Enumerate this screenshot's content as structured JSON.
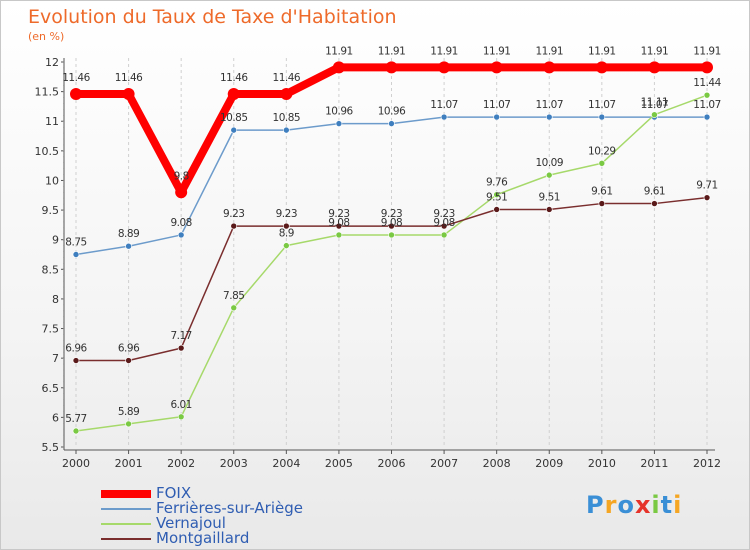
{
  "title": "Evolution du Taux de Taxe d'Habitation",
  "unit_label": "(en %)",
  "logo_text": "Proxiti",
  "chart_data": {
    "type": "line",
    "x": [
      "2000",
      "2001",
      "2002",
      "2003",
      "2004",
      "2005",
      "2006",
      "2007",
      "2008",
      "2009",
      "2010",
      "2011",
      "2012"
    ],
    "ylim": [
      5.5,
      12
    ],
    "yticks": [
      "5.5",
      "6",
      "6.5",
      "7",
      "7.5",
      "8",
      "8.5",
      "9",
      "9.5",
      "10",
      "10.5",
      "11",
      "11.5",
      "12"
    ],
    "grid": "vertical dashed",
    "legend_position": "bottom-left",
    "series": [
      {
        "name": "FOIX",
        "color": "#ff0000",
        "width": 8,
        "values": [
          11.46,
          11.46,
          9.8,
          11.46,
          11.46,
          11.91,
          11.91,
          11.91,
          11.91,
          11.91,
          11.91,
          11.91,
          11.91
        ],
        "labels": [
          "11.46",
          "11.46",
          "9.8",
          "11.46",
          "11.46",
          "11.91",
          "11.91",
          "11.91",
          "11.91",
          "11.91",
          "11.91",
          "11.91",
          "11.91"
        ]
      },
      {
        "name": "Ferrières-sur-Ariège",
        "color": "#6c9bcb",
        "width": 1.5,
        "values": [
          8.75,
          8.89,
          9.08,
          10.85,
          10.85,
          10.96,
          10.96,
          11.07,
          11.07,
          11.07,
          11.07,
          11.07,
          11.07
        ],
        "labels": [
          "8.75",
          "8.89",
          "9.08",
          "10.85",
          "10.85",
          "10.96",
          "10.96",
          "11.07",
          "11.07",
          "11.07",
          "11.07",
          "11.07",
          "11.07"
        ]
      },
      {
        "name": "Vernajoul",
        "color": "#a6d96a",
        "width": 1.5,
        "values": [
          5.77,
          5.89,
          6.01,
          7.85,
          8.9,
          9.08,
          9.08,
          9.08,
          9.76,
          10.09,
          10.29,
          11.11,
          11.44
        ],
        "labels": [
          "5.77",
          "5.89",
          "6.01",
          "7.85",
          "8.9",
          "9.08",
          "9.08",
          "9.08",
          "9.76",
          "10.09",
          "10.29",
          "11.11",
          "11.44"
        ]
      },
      {
        "name": "Montgaillard",
        "color": "#7a2e2e",
        "width": 1.5,
        "values": [
          6.96,
          6.96,
          7.17,
          9.23,
          9.23,
          9.23,
          9.23,
          9.23,
          9.51,
          9.51,
          9.61,
          9.61,
          9.71
        ],
        "labels": [
          "6.96",
          "6.96",
          "7.17",
          "9.23",
          "9.23",
          "9.23",
          "9.23",
          "9.23",
          "9.51",
          "9.51",
          "9.61",
          "9.61",
          "9.71"
        ]
      }
    ]
  }
}
